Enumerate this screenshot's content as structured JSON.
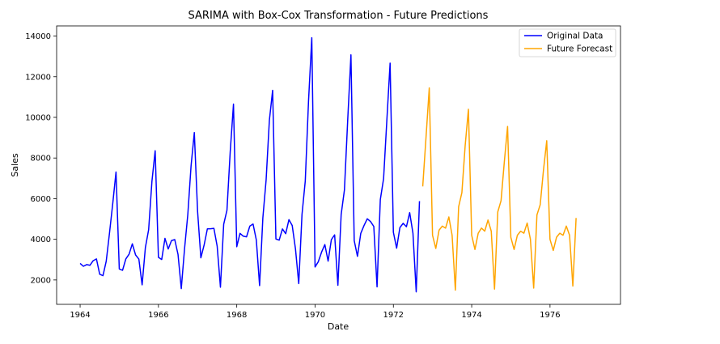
{
  "chart_data": {
    "type": "line",
    "title": "SARIMA with Box-Cox Transformation - Future Predictions",
    "xlabel": "Date",
    "ylabel": "Sales",
    "xlim": [
      1963.4,
      1977.8
    ],
    "ylim": [
      800,
      14500
    ],
    "x_ticks": [
      1964,
      1966,
      1968,
      1970,
      1972,
      1974,
      1976
    ],
    "y_ticks": [
      2000,
      4000,
      6000,
      8000,
      10000,
      12000,
      14000
    ],
    "grid": false,
    "legend_position": "top-right",
    "start_year": 1964,
    "step": 0.08333,
    "series": [
      {
        "name": "Original Data",
        "color": "#0000ff",
        "start_index": 0,
        "values": [
          2815,
          2672,
          2755,
          2721,
          2946,
          3036,
          2282,
          2212,
          2922,
          4301,
          5764,
          7312,
          2541,
          2475,
          3031,
          3266,
          3776,
          3230,
          3028,
          1759,
          3595,
          4474,
          6838,
          8357,
          3113,
          3006,
          4047,
          3523,
          3937,
          3986,
          3260,
          1573,
          3528,
          5211,
          7614,
          9254,
          5375,
          3088,
          3718,
          4514,
          4520,
          4539,
          3663,
          1643,
          4739,
          5428,
          8314,
          10651,
          3633,
          4292,
          4154,
          4121,
          4647,
          4753,
          3965,
          1723,
          5048,
          6922,
          9858,
          11331,
          4016,
          3957,
          4510,
          4276,
          4968,
          4677,
          3523,
          1821,
          5222,
          6872,
          10803,
          13916,
          2639,
          2899,
          3370,
          3740,
          2927,
          3986,
          4217,
          1738,
          5221,
          6424,
          9842,
          13076,
          3934,
          3162,
          4286,
          4676,
          5010,
          4874,
          4633,
          1659,
          5951,
          6981,
          9851,
          12670,
          4348,
          3564,
          4577,
          4788,
          4618,
          5312,
          4298,
          1413,
          5877
        ]
      },
      {
        "name": "Future Forecast",
        "color": "#ffa500",
        "start_index": 105,
        "values": [
          6600,
          9000,
          11450,
          4200,
          3550,
          4450,
          4650,
          4550,
          5100,
          4200,
          1500,
          5600,
          6300,
          8600,
          10400,
          4200,
          3500,
          4300,
          4550,
          4400,
          4950,
          4400,
          1550,
          5350,
          5900,
          7800,
          9550,
          4100,
          3500,
          4200,
          4400,
          4300,
          4800,
          4000,
          1600,
          5200,
          5700,
          7400,
          8850,
          4000,
          3450,
          4100,
          4300,
          4200,
          4650,
          4200,
          1700,
          5050
        ]
      }
    ]
  }
}
